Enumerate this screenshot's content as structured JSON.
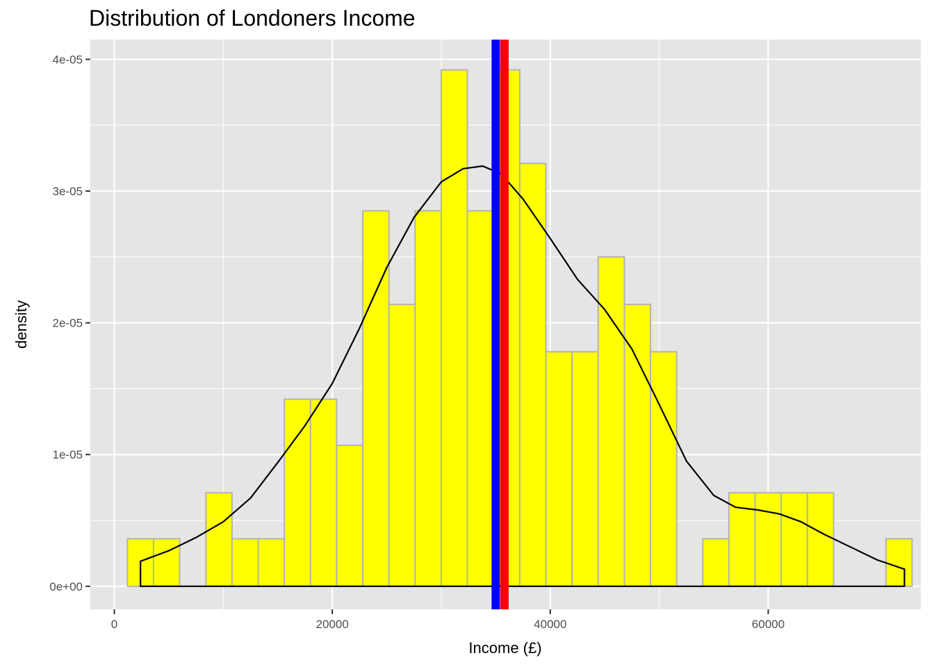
{
  "chart_data": {
    "type": "bar",
    "title": "Distribution of Londoners Income",
    "xlabel": "Income (£)",
    "ylabel": "density",
    "xlim": [
      -2200,
      74000
    ],
    "ylim": [
      -1.75e-06,
      4.15e-05
    ],
    "x_ticks": [
      0,
      20000,
      40000,
      60000
    ],
    "x_tick_labels": [
      "0",
      "20000",
      "40000",
      "60000"
    ],
    "y_ticks": [
      0,
      1e-05,
      2e-05,
      3e-05,
      4e-05
    ],
    "y_tick_labels": [
      "0e+00",
      "1e-05",
      "2e-05",
      "3e-05",
      "4e-05"
    ],
    "grid": true,
    "bin_width": 2400,
    "bins": [
      {
        "x_start": 1200,
        "density": 3.6e-06
      },
      {
        "x_start": 3600,
        "density": 3.6e-06
      },
      {
        "x_start": 6000,
        "density": 0
      },
      {
        "x_start": 8400,
        "density": 7.1e-06
      },
      {
        "x_start": 10800,
        "density": 3.6e-06
      },
      {
        "x_start": 13200,
        "density": 3.6e-06
      },
      {
        "x_start": 15600,
        "density": 1.42e-05
      },
      {
        "x_start": 18000,
        "density": 1.42e-05
      },
      {
        "x_start": 20400,
        "density": 1.07e-05
      },
      {
        "x_start": 22800,
        "density": 2.85e-05
      },
      {
        "x_start": 25200,
        "density": 2.14e-05
      },
      {
        "x_start": 27600,
        "density": 2.85e-05
      },
      {
        "x_start": 30000,
        "density": 3.92e-05
      },
      {
        "x_start": 32400,
        "density": 2.85e-05
      },
      {
        "x_start": 34800,
        "density": 3.92e-05
      },
      {
        "x_start": 37200,
        "density": 3.21e-05
      },
      {
        "x_start": 39600,
        "density": 1.78e-05
      },
      {
        "x_start": 42000,
        "density": 1.78e-05
      },
      {
        "x_start": 44400,
        "density": 2.5e-05
      },
      {
        "x_start": 46800,
        "density": 2.14e-05
      },
      {
        "x_start": 49200,
        "density": 1.78e-05
      },
      {
        "x_start": 51600,
        "density": 0
      },
      {
        "x_start": 54000,
        "density": 3.6e-06
      },
      {
        "x_start": 56400,
        "density": 7.1e-06
      },
      {
        "x_start": 58800,
        "density": 7.1e-06
      },
      {
        "x_start": 61200,
        "density": 7.1e-06
      },
      {
        "x_start": 63600,
        "density": 7.1e-06
      },
      {
        "x_start": 66000,
        "density": 0
      },
      {
        "x_start": 68400,
        "density": 0
      },
      {
        "x_start": 70800,
        "density": 3.6e-06
      }
    ],
    "density_curve": {
      "x": [
        2400,
        5000,
        7500,
        10000,
        12500,
        15000,
        17500,
        20000,
        22500,
        25000,
        27500,
        30000,
        32000,
        33800,
        35500,
        37500,
        40000,
        42500,
        45000,
        47500,
        50000,
        52500,
        55000,
        57000,
        59000,
        61000,
        63000,
        65000,
        67500,
        70000,
        72500
      ],
      "y": [
        1.9e-06,
        2.7e-06,
        3.7e-06,
        4.9e-06,
        6.7e-06,
        9.4e-06,
        1.22e-05,
        1.54e-05,
        1.96e-05,
        2.42e-05,
        2.8e-05,
        3.07e-05,
        3.17e-05,
        3.19e-05,
        3.13e-05,
        2.94e-05,
        2.64e-05,
        2.33e-05,
        2.1e-05,
        1.8e-05,
        1.38e-05,
        9.5e-06,
        6.9e-06,
        6e-06,
        5.8e-06,
        5.5e-06,
        4.9e-06,
        4e-06,
        3e-06,
        2e-06,
        1.3e-06
      ]
    },
    "vlines": [
      {
        "x": 35000,
        "color": "#0000ff"
      },
      {
        "x": 35800,
        "color": "#ff0000"
      }
    ],
    "colors": {
      "panel_background": "#e5e5e5",
      "grid": "#ffffff",
      "bar_fill": "#ffff00",
      "bar_outline": "#b3b3b3",
      "curve": "#000000"
    }
  }
}
